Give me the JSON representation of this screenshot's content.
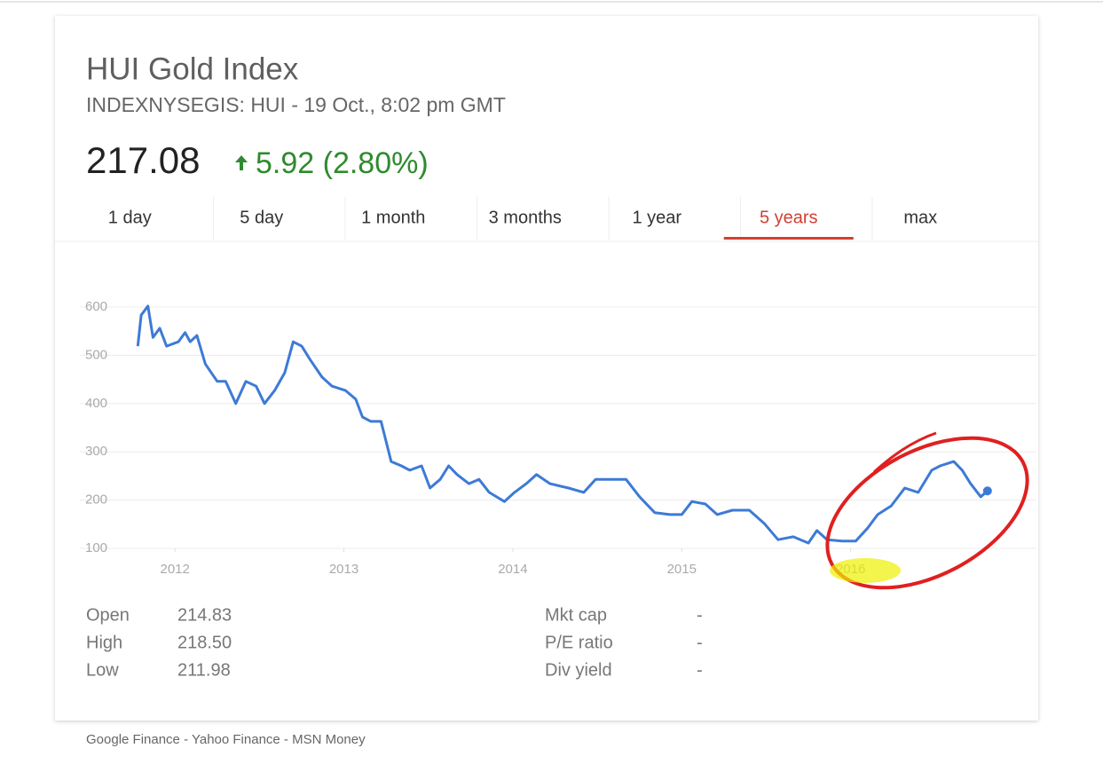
{
  "header": {
    "title": "HUI Gold Index",
    "subtitle": "INDEXNYSEGIS: HUI - 19 Oct., 8:02 pm GMT",
    "price": "217.08",
    "change": "5.92 (2.80%)"
  },
  "tabs": {
    "labels": [
      "1 day",
      "5 day",
      "1 month",
      "3 months",
      "1 year",
      "5 years",
      "max"
    ],
    "selected": 5
  },
  "chart_data": {
    "type": "line",
    "x": [
      2011.78,
      2011.8,
      2011.84,
      2011.87,
      2011.91,
      2011.95,
      2012.02,
      2012.06,
      2012.09,
      2012.13,
      2012.18,
      2012.25,
      2012.3,
      2012.36,
      2012.42,
      2012.48,
      2012.53,
      2012.59,
      2012.65,
      2012.7,
      2012.75,
      2012.8,
      2012.87,
      2012.93,
      2013.01,
      2013.07,
      2013.11,
      2013.16,
      2013.22,
      2013.28,
      2013.34,
      2013.39,
      2013.46,
      2013.51,
      2013.57,
      2013.62,
      2013.67,
      2013.74,
      2013.8,
      2013.86,
      2013.95,
      2014.01,
      2014.08,
      2014.14,
      2014.22,
      2014.33,
      2014.42,
      2014.49,
      2014.59,
      2014.67,
      2014.75,
      2014.84,
      2014.93,
      2015.0,
      2015.06,
      2015.14,
      2015.21,
      2015.3,
      2015.4,
      2015.49,
      2015.57,
      2015.66,
      2015.75,
      2015.8,
      2015.86,
      2015.95,
      2016.03,
      2016.1,
      2016.16,
      2016.24,
      2016.32,
      2016.4,
      2016.48,
      2016.53,
      2016.61,
      2016.66,
      2016.71,
      2016.77,
      2016.81
    ],
    "series": [
      {
        "color": "#3d7ad6",
        "values": [
          519,
          583,
          602,
          537,
          556,
          519,
          528,
          547,
          528,
          541,
          482,
          446,
          446,
          400,
          446,
          436,
          400,
          427,
          464,
          528,
          519,
          491,
          455,
          436,
          427,
          409,
          372,
          363,
          363,
          280,
          271,
          262,
          271,
          225,
          243,
          271,
          253,
          234,
          243,
          216,
          197,
          216,
          234,
          253,
          234,
          225,
          216,
          243,
          243,
          243,
          207,
          174,
          170,
          170,
          197,
          192,
          170,
          179,
          179,
          151,
          118,
          124,
          111,
          137,
          118,
          115,
          115,
          142,
          170,
          188,
          225,
          216,
          262,
          271,
          280,
          262,
          234,
          207,
          219
        ]
      }
    ],
    "xlim": [
      2011.5,
      2017.0
    ],
    "xticks": [
      2012,
      2013,
      2014,
      2015,
      2016
    ],
    "ylim": [
      100,
      600
    ],
    "yticks": [
      100,
      200,
      300,
      400,
      500,
      600
    ],
    "grid": true
  },
  "stats": {
    "left": [
      [
        "Open",
        "214.83"
      ],
      [
        "High",
        "218.50"
      ],
      [
        "Low",
        "211.98"
      ]
    ],
    "right": [
      [
        "Mkt cap",
        "-"
      ],
      [
        "P/E ratio",
        "-"
      ],
      [
        "Div yield",
        "-"
      ]
    ]
  },
  "footer": "Google Finance - Yahoo Finance - MSN Money"
}
